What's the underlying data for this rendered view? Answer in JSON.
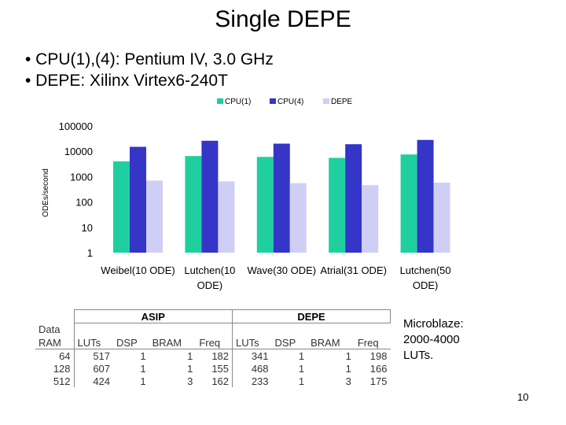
{
  "title": "Single DEPE",
  "bullets": [
    "• CPU(1),(4): Pentium IV, 3.0 GHz",
    "• DEPE: Xilinx Virtex6-240T"
  ],
  "chart_data": {
    "type": "bar",
    "ylabel": "ODEs/second",
    "yscale": "log",
    "ylim": [
      1,
      100000
    ],
    "yticks": [
      "1",
      "10",
      "100",
      "1000",
      "10000",
      "100000"
    ],
    "categories": [
      [
        "Weibel(10 ODE)"
      ],
      [
        "Lutchen(10",
        "ODE)"
      ],
      [
        "Wave(30 ODE)"
      ],
      [
        "Atrial(31 ODE)"
      ],
      [
        "Lutchen(50",
        "ODE)"
      ]
    ],
    "legend_position": "top",
    "series": [
      {
        "name": "CPU(1)",
        "color": "#1fcfa0",
        "values": [
          4000,
          6500,
          6000,
          5500,
          7500
        ]
      },
      {
        "name": "CPU(4)",
        "color": "#3535c8",
        "values": [
          15000,
          26000,
          20000,
          19000,
          28000
        ]
      },
      {
        "name": "DEPE",
        "color": "#cfcff5",
        "values": [
          700,
          650,
          550,
          460,
          580
        ]
      }
    ]
  },
  "table": {
    "groups": [
      "ASIP",
      "DEPE"
    ],
    "first_col_header": [
      "Data",
      "RAM"
    ],
    "columns": [
      "LUTs",
      "DSP",
      "BRAM",
      "Freq",
      "LUTs",
      "DSP",
      "BRAM",
      "Freq"
    ],
    "rows": [
      [
        "64",
        "517",
        "1",
        "1",
        "182",
        "341",
        "1",
        "1",
        "198"
      ],
      [
        "128",
        "607",
        "1",
        "1",
        "155",
        "468",
        "1",
        "1",
        "166"
      ],
      [
        "512",
        "424",
        "1",
        "3",
        "162",
        "233",
        "1",
        "3",
        "175"
      ]
    ]
  },
  "note": [
    "Microblaze:",
    "2000-4000",
    "LUTs."
  ],
  "page_number": "10"
}
